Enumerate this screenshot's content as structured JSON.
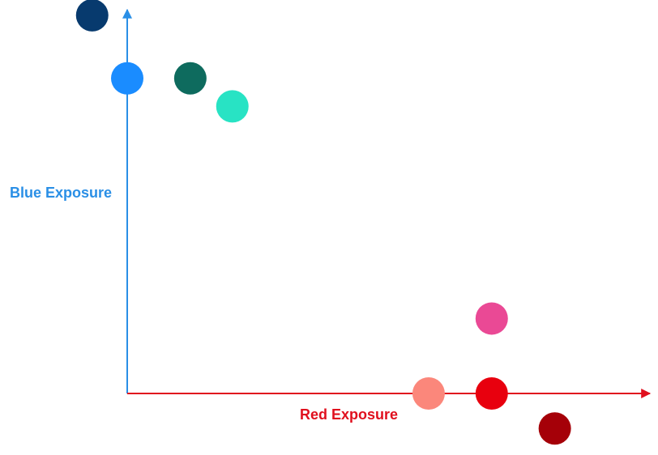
{
  "chart_data": {
    "type": "scatter",
    "title": "",
    "xlabel": "Red Exposure",
    "ylabel": "Blue Exposure",
    "xlim": [
      -1.0,
      6.4
    ],
    "ylim": [
      -0.5,
      5.8
    ],
    "grid": false,
    "axis_colors": {
      "x": "#e0101e",
      "y": "#2a8fe6"
    },
    "points": [
      {
        "x": -0.5,
        "y": 5.4,
        "color": "#073a6e"
      },
      {
        "x": 0.0,
        "y": 4.5,
        "color": "#1a8cff"
      },
      {
        "x": 0.9,
        "y": 4.5,
        "color": "#0e6b5e"
      },
      {
        "x": 1.5,
        "y": 4.1,
        "color": "#28e3c4"
      },
      {
        "x": 4.3,
        "y": 0.0,
        "color": "#fb877b"
      },
      {
        "x": 5.2,
        "y": 0.0,
        "color": "#e8000e"
      },
      {
        "x": 5.2,
        "y": 1.07,
        "color": "#ea4995"
      },
      {
        "x": 6.1,
        "y": -0.5,
        "color": "#a50008"
      }
    ]
  }
}
